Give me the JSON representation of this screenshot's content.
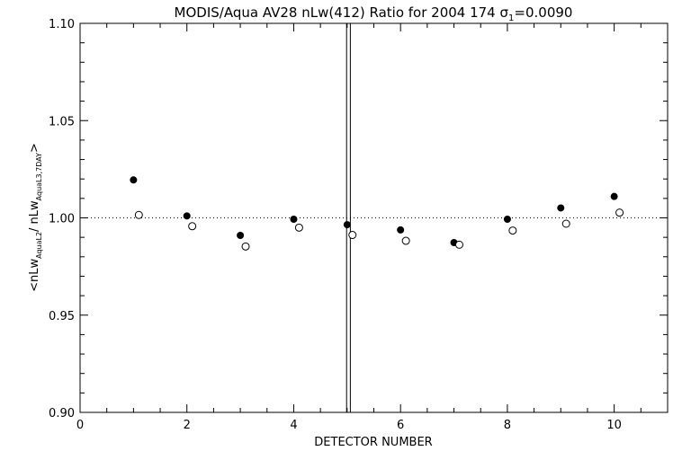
{
  "chart_data": {
    "type": "scatter",
    "title_main": "MODIS/Aqua AV28 nLw(412) Ratio for 2004 174 ",
    "title_sigma": "σ",
    "title_sub": "1",
    "title_value": "=0.0090",
    "xlabel": "DETECTOR NUMBER",
    "ylabel_parts": {
      "open": "<nLw",
      "sub1": "AquaL2",
      "slash": "/ nLw",
      "sub2": "AquaL3,7DAY",
      "close": ">"
    },
    "xlim": [
      0,
      11
    ],
    "ylim": [
      0.9,
      1.1
    ],
    "x_ticks": [
      0,
      2,
      4,
      6,
      8,
      10
    ],
    "x_tick_labels": [
      "0",
      "2",
      "4",
      "6",
      "8",
      "10"
    ],
    "y_ticks": [
      0.9,
      0.95,
      1.0,
      1.05,
      1.1
    ],
    "y_tick_labels": [
      "0.90",
      "0.95",
      "1.00",
      "1.05",
      "1.10"
    ],
    "reference_line_y": 1.0,
    "vertical_lines_x": [
      4.99,
      5.06
    ],
    "series": [
      {
        "marker": "filled-circle",
        "x": [
          1,
          2,
          3,
          4,
          5,
          6,
          7,
          8,
          9,
          10
        ],
        "y": [
          1.0195,
          1.001,
          0.991,
          0.9993,
          0.9965,
          0.9938,
          0.9873,
          0.9993,
          1.0051,
          1.011
        ]
      },
      {
        "marker": "open-circle",
        "x": [
          1.1,
          2.1,
          3.1,
          4.1,
          5.1,
          6.1,
          7.1,
          8.1,
          9.1,
          10.1
        ],
        "y": [
          1.0015,
          0.9957,
          0.9853,
          0.995,
          0.9912,
          0.9882,
          0.9862,
          0.9935,
          0.997,
          1.0027
        ]
      }
    ]
  }
}
